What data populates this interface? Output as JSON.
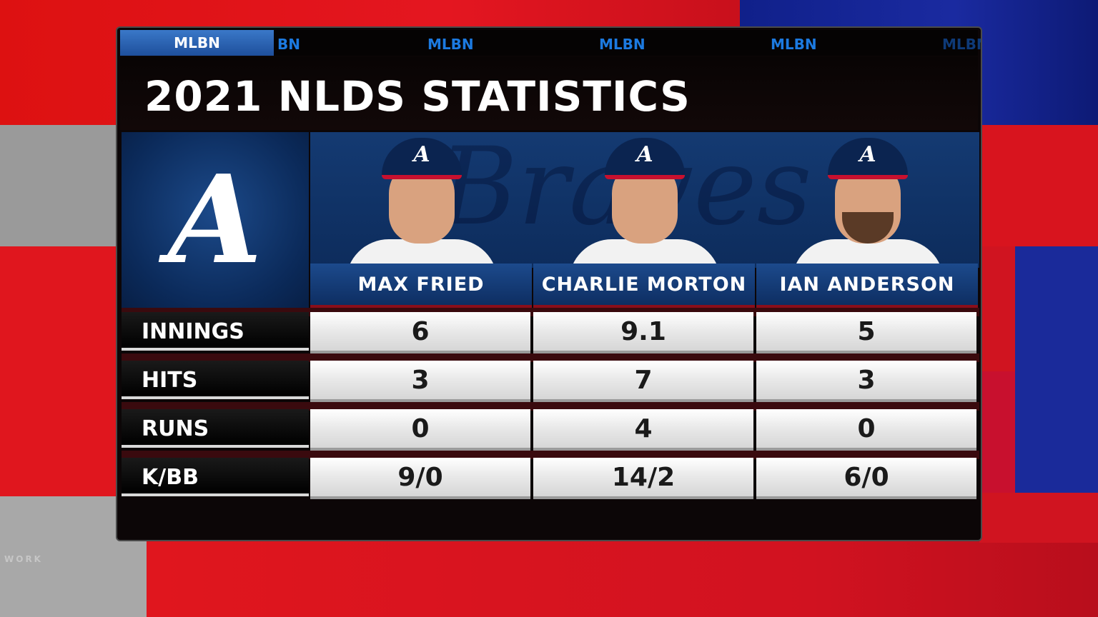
{
  "network": "MLBN",
  "ticker": {
    "active_label": "MLBN",
    "items": [
      "BN",
      "MLBN",
      "MLBN",
      "MLBN",
      "MLBN"
    ]
  },
  "title": "2021 NLDS STATISTICS",
  "team": {
    "logo_letter": "A",
    "script_watermark": "Braves"
  },
  "players": [
    {
      "name": "MAX FRIED"
    },
    {
      "name": "CHARLIE MORTON"
    },
    {
      "name": "IAN ANDERSON"
    }
  ],
  "stats": [
    {
      "label": "INNINGS",
      "values": [
        "6",
        "9.1",
        "5"
      ]
    },
    {
      "label": "HITS",
      "values": [
        "3",
        "7",
        "3"
      ]
    },
    {
      "label": "RUNS",
      "values": [
        "0",
        "4",
        "0"
      ]
    },
    {
      "label": "K/BB",
      "values": [
        "9/0",
        "14/2",
        "6/0"
      ]
    }
  ],
  "background_text": {
    "left": "WORK"
  },
  "colors": {
    "accent_blue": "#1c7ae0",
    "braves_navy": "#0b2450",
    "braves_red": "#c8102e"
  }
}
